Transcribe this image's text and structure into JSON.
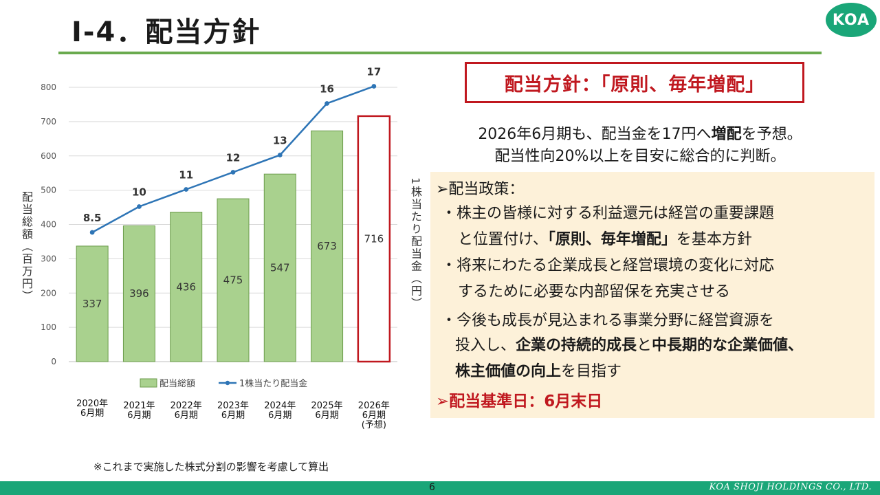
{
  "header": {
    "title": "Ⅰ-4．配当方針",
    "logo": "KOA"
  },
  "policy_box": "配当方針：「原則、毎年増配」",
  "forecast": {
    "line1_pre": "2026年6月期も、配当金を17円へ",
    "line1_bold": "増配",
    "line1_post": "を予想。",
    "line2": "配当性向20%以上を目安に総合的に判断。"
  },
  "panel": {
    "heading": "➢配当政策：",
    "b1_l1": "・株主の皆様に対する利益還元は経営の重要課題",
    "b1_l2_pre": "と位置付け、",
    "b1_l2_bold": "「原則、毎年増配」",
    "b1_l2_post": "を基本方針",
    "b2_l1": "・将来にわたる企業成長と経営環境の変化に対応",
    "b2_l2": "するために必要な内部留保を充実させる",
    "b3_l1": "・今後も成長が見込まれる事業分野に経営資源を",
    "b3_l2_pre": "投入し、",
    "b3_l2_bold1": "企業の持続的成長",
    "b3_l2_mid": "と",
    "b3_l2_bold2": "中長期的な企業価値、",
    "b3_l3_bold": "株主価値の向上",
    "b3_l3_post": "を目指す",
    "base_date": "➢配当基準日：6月末日"
  },
  "footnote": "※これまで実施した株式分割の影響を考慮して算出",
  "footer": {
    "page": "6",
    "company": "KOA SHOJI HOLDINGS CO., LTD."
  },
  "colors": {
    "bar": "#a9d18e",
    "bar_border": "#6a9a4a",
    "line": "#2e75b6",
    "forecast_border": "#c0181f",
    "accent": "#c0181f",
    "brand": "#1aa678"
  },
  "chart_data": {
    "type": "bar",
    "categories": [
      [
        "2020年",
        "6月期"
      ],
      [
        "2021年",
        "6月期"
      ],
      [
        "2022年",
        "6月期"
      ],
      [
        "2023年",
        "6月期"
      ],
      [
        "2024年",
        "6月期"
      ],
      [
        "2025年",
        "6月期"
      ],
      [
        "2026年",
        "6月期",
        "(予想)"
      ]
    ],
    "ylabel": "配当総額（百万円）",
    "y2label": "1株当たり配当金（円）",
    "ylim": [
      0,
      800
    ],
    "yticks": [
      0,
      100,
      200,
      300,
      400,
      500,
      600,
      700,
      800
    ],
    "gridlines": true,
    "legend_position": "bottom",
    "series": [
      {
        "name": "配当総額",
        "type": "bar",
        "values": [
          337,
          396,
          436,
          475,
          547,
          673,
          716
        ],
        "labels": [
          "337",
          "396",
          "436",
          "475",
          "547",
          "673",
          "716"
        ],
        "forecast_index": 6
      },
      {
        "name": "1株当たり配当金",
        "type": "line",
        "values": [
          8.5,
          10,
          11,
          12,
          13,
          16,
          17
        ],
        "labels": [
          "8.5",
          "10",
          "11",
          "12",
          "13",
          "16",
          "17"
        ]
      }
    ]
  }
}
